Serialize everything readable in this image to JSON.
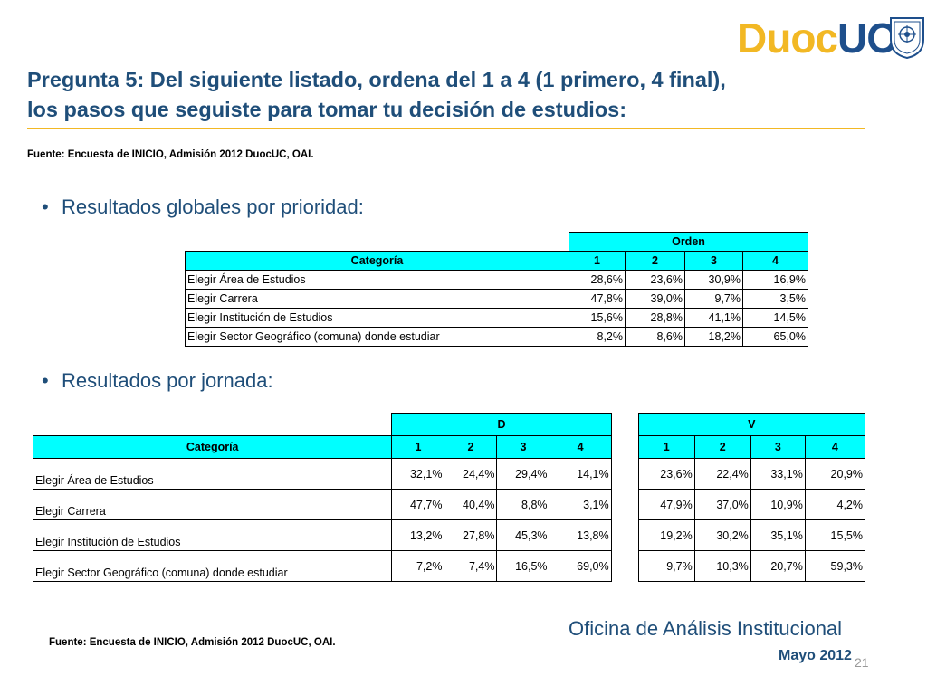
{
  "logo": {
    "duoc": "Duoc",
    "uc": "UC"
  },
  "title": {
    "line1": "Pregunta 5: Del siguiente listado, ordena del 1 a 4 (1 primero, 4 final),",
    "line2": "los pasos que seguiste para tomar tu decisión de estudios:"
  },
  "source_top": "Fuente: Encuesta de INICIO, Admisión 2012 DuocUC, OAI.",
  "bullet1": "Resultados globales por prioridad:",
  "bullet2": "Resultados por jornada:",
  "table1": {
    "group_header": "Orden",
    "category_header": "Categoría",
    "columns": [
      "1",
      "2",
      "3",
      "4"
    ],
    "rows": [
      {
        "label": "Elegir Área de Estudios",
        "values": [
          "28,6%",
          "23,6%",
          "30,9%",
          "16,9%"
        ]
      },
      {
        "label": "Elegir Carrera",
        "values": [
          "47,8%",
          "39,0%",
          "9,7%",
          "3,5%"
        ]
      },
      {
        "label": "Elegir Institución de Estudios",
        "values": [
          "15,6%",
          "28,8%",
          "41,1%",
          "14,5%"
        ]
      },
      {
        "label": "Elegir Sector Geográfico (comuna) donde estudiar",
        "values": [
          "8,2%",
          "8,6%",
          "18,2%",
          "65,0%"
        ]
      }
    ]
  },
  "table2": {
    "group_d": "D",
    "group_v": "V",
    "category_header": "Categoría",
    "columns": [
      "1",
      "2",
      "3",
      "4"
    ],
    "rows": [
      {
        "label": "Elegir Área de Estudios",
        "d": [
          "32,1%",
          "24,4%",
          "29,4%",
          "14,1%"
        ],
        "v": [
          "23,6%",
          "22,4%",
          "33,1%",
          "20,9%"
        ]
      },
      {
        "label": "Elegir Carrera",
        "d": [
          "47,7%",
          "40,4%",
          "8,8%",
          "3,1%"
        ],
        "v": [
          "47,9%",
          "37,0%",
          "10,9%",
          "4,2%"
        ]
      },
      {
        "label": "Elegir Institución de Estudios",
        "d": [
          "13,2%",
          "27,8%",
          "45,3%",
          "13,8%"
        ],
        "v": [
          "19,2%",
          "30,2%",
          "35,1%",
          "15,5%"
        ]
      },
      {
        "label": "Elegir Sector Geográfico (comuna) donde estudiar",
        "d": [
          "7,2%",
          "7,4%",
          "16,5%",
          "69,0%"
        ],
        "v": [
          "9,7%",
          "10,3%",
          "20,7%",
          "59,3%"
        ]
      }
    ]
  },
  "source_bottom": "Fuente: Encuesta de INICIO, Admisión 2012 DuocUC, OAI.",
  "footer": {
    "office": "Oficina de Análisis Institucional",
    "date": "Mayo 2012",
    "page": "21"
  }
}
